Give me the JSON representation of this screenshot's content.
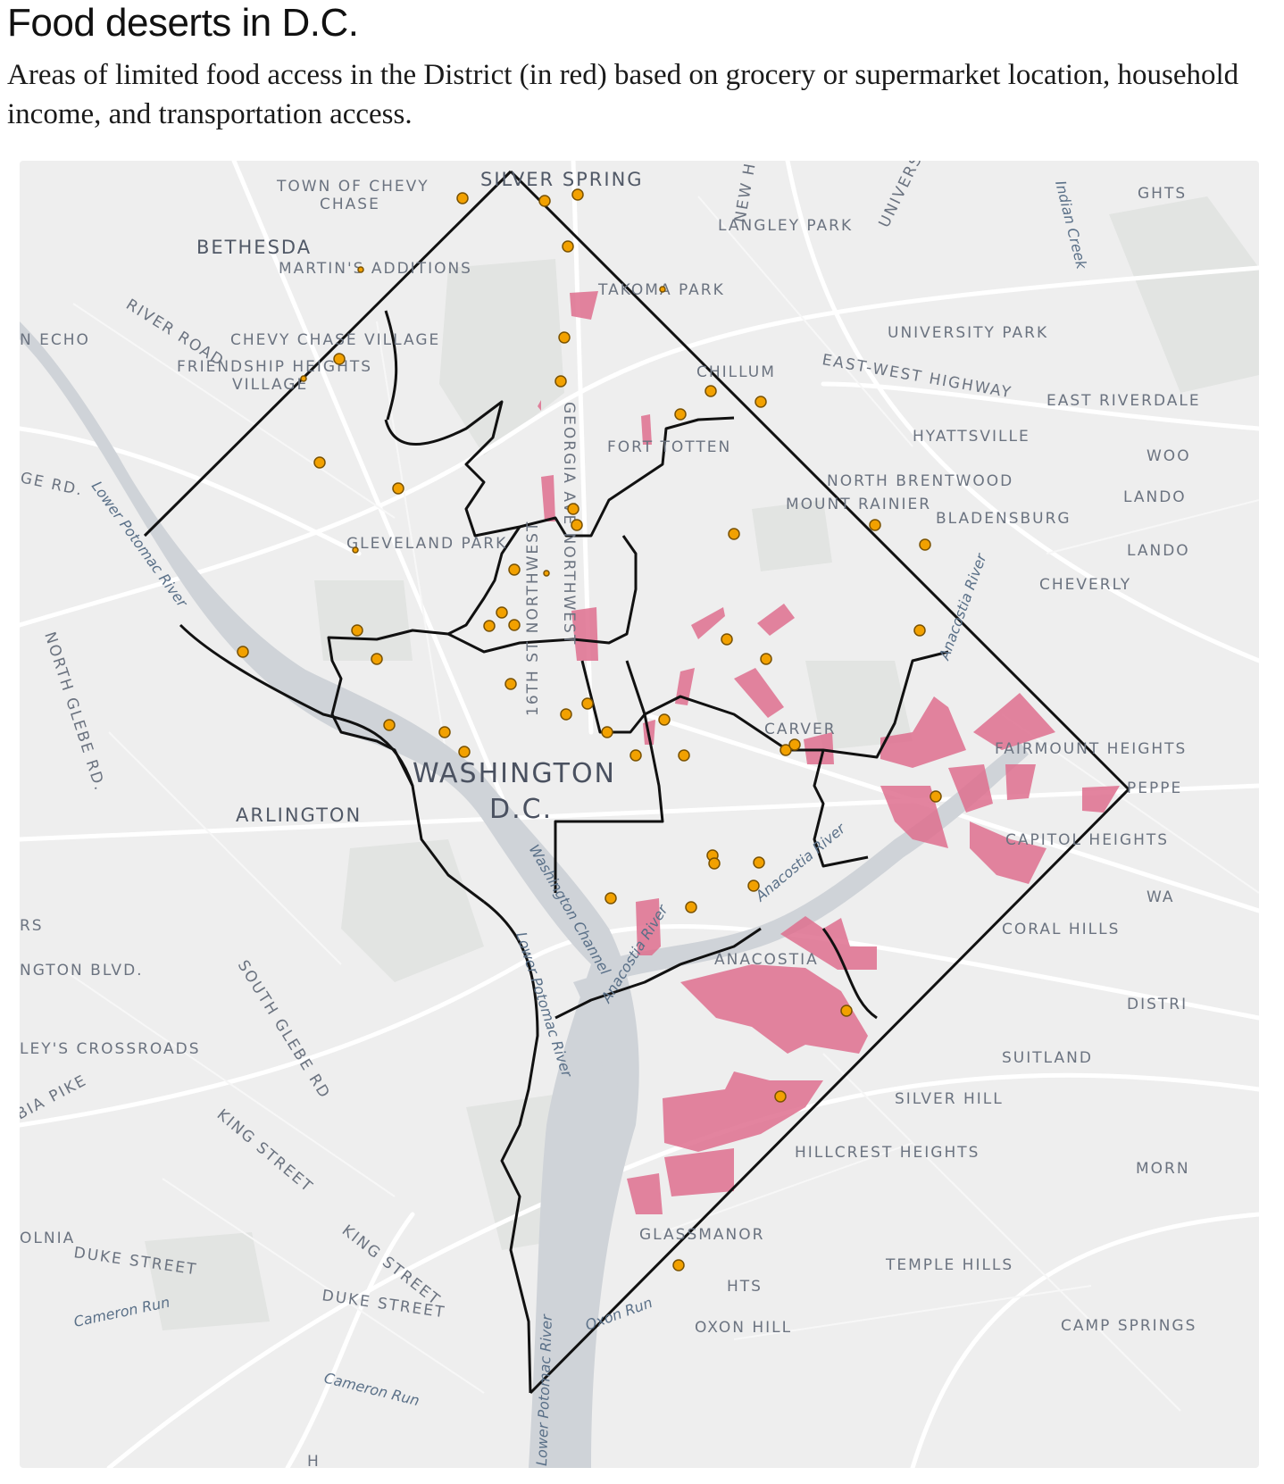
{
  "title": "Food deserts in D.C.",
  "subtitle": "Areas of limited food access in the District (in red) based on grocery or supermarket location, household income, and transportation access.",
  "colors": {
    "food_desert": "#de6e8e",
    "store": "#f2a100",
    "boundary": "#111111",
    "land": "#eeeeee",
    "water": "#cfd3d8"
  },
  "map": {
    "place_labels": [
      "TOWN OF CHEVY",
      "CHASE",
      "SILVER SPRING",
      "BETHESDA",
      "MARTIN'S ADDITIONS",
      "TAKOMA PARK",
      "LANGLEY PARK",
      "GHTS",
      "RIVER ROAD",
      "N ECHO",
      "CHEVY CHASE VILLAGE",
      "FRIENDSHIP HEIGHTS",
      "VILLAGE",
      "UNIVERSITY PARK",
      "EAST-WEST HIGHWAY",
      "CHILLUM",
      "EAST RIVERDALE",
      "HYATTSVILLE",
      "FORT TOTTEN",
      "GEORGIA AVE NORTHWEST",
      "GE RD.",
      "NORTH BRENTWOOD",
      "MOUNT RAINIER",
      "BLADENSBURG",
      "WOO",
      "LANDO",
      "LANDO",
      "GLEVELAND PARK",
      "CHEVERLY",
      "16TH ST NORTHWEST",
      "NORTH GLEBE RD.",
      "CARVER",
      "FAIRMOUNT HEIGHTS",
      "WASHINGTON",
      "D.C.",
      "ARLINGTON",
      "PEPPE",
      "CAPITOL HEIGHTS",
      "RS",
      "WA",
      "CORAL HILLS",
      "NGTON BLVD.",
      "ANACOSTIA",
      "DISTRI",
      "SOUTH GLEBE RD",
      "LEY'S CROSSROADS",
      "SUITLAND",
      "BIA PIKE",
      "SILVER HILL",
      "KING STREET",
      "HILLCREST HEIGHTS",
      "MORN",
      "GLASSMANOR",
      "OLNIA",
      "DUKE STREET",
      "KING STREET",
      "TEMPLE HILLS",
      "DUKE STREET",
      "HTS",
      "OXON HILL",
      "CAMP SPRINGS",
      "H",
      "NEW H",
      "UNIVERS"
    ],
    "water_labels": [
      "Indian Creek",
      "Lower Potomac River",
      "Anacostia River",
      "Anacostia River",
      "Washington Channel",
      "Anacostia River",
      "Lower Potomac River",
      "Lower Potomac River",
      "Oxon Run",
      "Cameron Run",
      "Cameron Run"
    ],
    "store_count": 47
  }
}
